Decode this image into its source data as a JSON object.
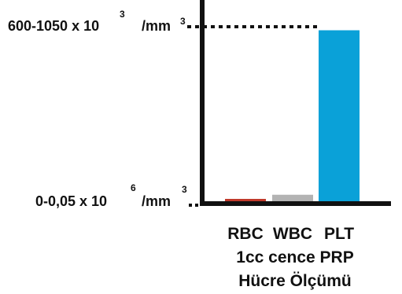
{
  "chart_data": {
    "type": "bar",
    "categories": [
      "RBC",
      "WBC",
      "PLT"
    ],
    "values": [
      0.4,
      1.1,
      29
    ],
    "colors": [
      "#c0392b",
      "#b3b3b3",
      "#0aa1d8"
    ],
    "ylim": [
      0,
      30
    ],
    "title": "",
    "xlabel": "",
    "ylabel": "",
    "reference_lines": [
      {
        "value": 30,
        "label_prefix": "600-1050 x 10",
        "label_exponent": "3",
        "label_unit": "/mm",
        "label_unit_exponent": "3"
      },
      {
        "value": 0,
        "label_prefix": "0-0,05 x 10",
        "label_exponent": "6",
        "label_unit": "/mm",
        "label_unit_exponent": "3"
      }
    ],
    "caption_lines": [
      "1cc cence PRP",
      "Hücre Ölçümü"
    ],
    "grid": false,
    "legend": "none"
  }
}
